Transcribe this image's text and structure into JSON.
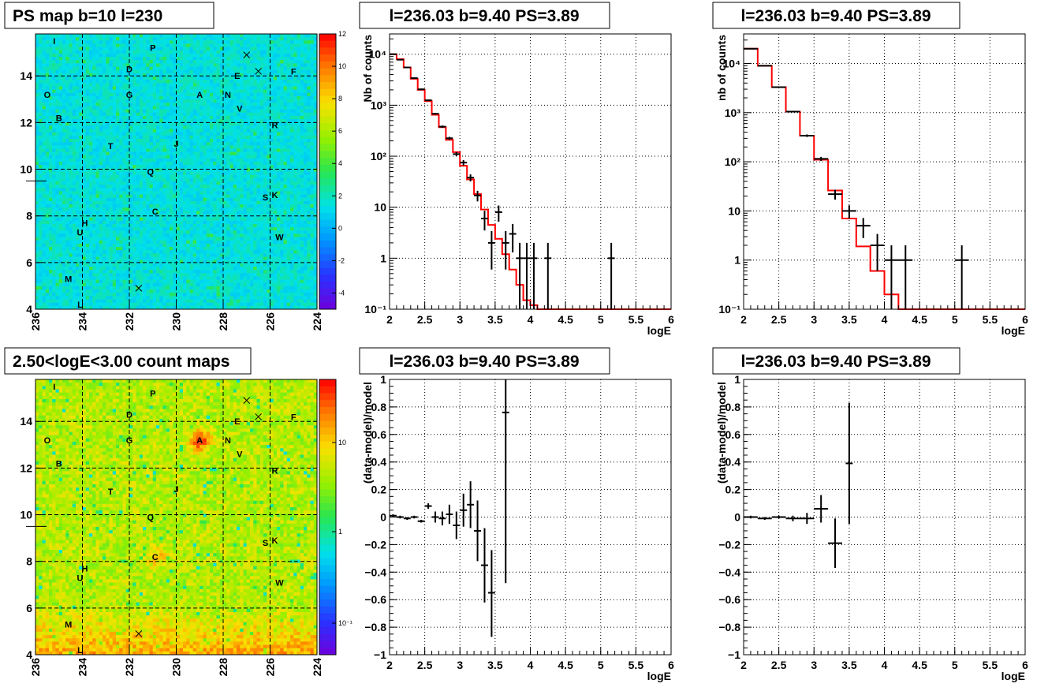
{
  "chart_data": [
    {
      "id": "ps-map",
      "type": "heatmap",
      "title": "PS map b=10 l=230",
      "x_ticks": [
        "236",
        "234",
        "232",
        "230",
        "228",
        "226",
        "224"
      ],
      "y_ticks": [
        "4",
        "6",
        "8",
        "10",
        "12",
        "14"
      ],
      "xlim": [
        236,
        224
      ],
      "ylim": [
        4,
        15.8
      ],
      "palette_ticks": [
        "12",
        "10",
        "8",
        "6",
        "4",
        "2",
        "0",
        "-2",
        "-4"
      ],
      "palette_range": [
        -5,
        12
      ],
      "palette_scale": "linear",
      "background_level": 0.5
    },
    {
      "id": "count-map",
      "type": "heatmap",
      "title": "2.50<logE<3.00 count maps",
      "x_ticks": [
        "236",
        "234",
        "232",
        "230",
        "228",
        "226",
        "224"
      ],
      "y_ticks": [
        "4",
        "6",
        "8",
        "10",
        "12",
        "14"
      ],
      "xlim": [
        236,
        224
      ],
      "ylim": [
        4,
        15.8
      ],
      "palette_ticks": [
        "10",
        "1",
        "10⁻¹"
      ],
      "palette_scale": "log",
      "hotspots": [
        {
          "label": "A",
          "l": 229.0,
          "b": 13.2,
          "strength": 1.0
        },
        {
          "label": "C",
          "l": 230.8,
          "b": 8.2,
          "strength": 0.45
        }
      ]
    },
    {
      "id": "spectrum-1",
      "type": "line",
      "title": "l=236.03 b=9.40 PS=3.89",
      "xlabel": "logE",
      "ylabel": "Nb of counts",
      "xlim": [
        2,
        6
      ],
      "ylim": [
        0.1,
        25000
      ],
      "yscale": "log",
      "x_ticks": [
        "2",
        "2.5",
        "3",
        "3.5",
        "4",
        "4.5",
        "5",
        "5.5",
        "6"
      ],
      "y_ticks": [
        {
          "v": 0.1,
          "t": "10⁻¹"
        },
        {
          "v": 1,
          "t": "1"
        },
        {
          "v": 10,
          "t": "10"
        },
        {
          "v": 100,
          "t": "10²"
        },
        {
          "v": 1000,
          "t": "10³"
        },
        {
          "v": 10000,
          "t": "10⁴"
        }
      ],
      "model": {
        "edges": [
          2.0,
          2.1,
          2.2,
          2.3,
          2.4,
          2.5,
          2.6,
          2.7,
          2.8,
          2.9,
          3.0,
          3.1,
          3.2,
          3.3,
          3.4,
          3.5,
          3.6,
          3.7,
          3.8,
          3.9,
          4.0,
          4.1,
          6.0
        ],
        "values": [
          10000,
          8000,
          5500,
          3300,
          2000,
          1200,
          650,
          370,
          210,
          120,
          65,
          35,
          18,
          9,
          4.5,
          2.4,
          1.2,
          0.6,
          0.3,
          0.15,
          0.12,
          0.1
        ]
      },
      "data": [
        {
          "x": 2.05,
          "y": 10000,
          "lo": 9800,
          "hi": 10200,
          "hw": 0.05
        },
        {
          "x": 2.15,
          "y": 7800,
          "lo": 7600,
          "hi": 8000,
          "hw": 0.05
        },
        {
          "x": 2.25,
          "y": 5500,
          "lo": 5350,
          "hi": 5650,
          "hw": 0.05
        },
        {
          "x": 2.35,
          "y": 3400,
          "lo": 3300,
          "hi": 3500,
          "hw": 0.05
        },
        {
          "x": 2.45,
          "y": 2050,
          "lo": 1980,
          "hi": 2120,
          "hw": 0.05
        },
        {
          "x": 2.55,
          "y": 1250,
          "lo": 1200,
          "hi": 1300,
          "hw": 0.05
        },
        {
          "x": 2.65,
          "y": 680,
          "lo": 650,
          "hi": 710,
          "hw": 0.05
        },
        {
          "x": 2.75,
          "y": 380,
          "lo": 360,
          "hi": 400,
          "hw": 0.05
        },
        {
          "x": 2.85,
          "y": 225,
          "lo": 210,
          "hi": 240,
          "hw": 0.05
        },
        {
          "x": 2.95,
          "y": 110,
          "lo": 100,
          "hi": 120,
          "hw": 0.05
        },
        {
          "x": 3.05,
          "y": 75,
          "lo": 66,
          "hi": 84,
          "hw": 0.05
        },
        {
          "x": 3.15,
          "y": 38,
          "lo": 32,
          "hi": 44,
          "hw": 0.05
        },
        {
          "x": 3.25,
          "y": 17,
          "lo": 13,
          "hi": 21,
          "hw": 0.05
        },
        {
          "x": 3.35,
          "y": 6,
          "lo": 3.5,
          "hi": 8.5,
          "hw": 0.05
        },
        {
          "x": 3.45,
          "y": 2,
          "lo": 0.6,
          "hi": 3.4,
          "hw": 0.05
        },
        {
          "x": 3.55,
          "y": 8,
          "lo": 5.2,
          "hi": 10.8,
          "hw": 0.05
        },
        {
          "x": 3.65,
          "y": 2,
          "lo": 0.6,
          "hi": 3.4,
          "hw": 0.05
        },
        {
          "x": 3.75,
          "y": 3,
          "lo": 1.3,
          "hi": 4.7,
          "hw": 0.05
        },
        {
          "x": 3.85,
          "y": 1,
          "lo": 0.1,
          "hi": 2.0,
          "hw": 0.05
        },
        {
          "x": 3.95,
          "y": 1,
          "lo": 0.1,
          "hi": 2.0,
          "hw": 0.05
        },
        {
          "x": 4.05,
          "y": 1,
          "lo": 0.1,
          "hi": 2.0,
          "hw": 0.05
        },
        {
          "x": 4.25,
          "y": 1,
          "lo": 0.1,
          "hi": 2.0,
          "hw": 0.05
        },
        {
          "x": 5.15,
          "y": 1,
          "lo": 0.1,
          "hi": 2.0,
          "hw": 0.05
        }
      ]
    },
    {
      "id": "spectrum-2",
      "type": "line",
      "title": "l=236.03 b=9.40 PS=3.89",
      "xlabel": "logE",
      "ylabel": "nb of counts",
      "xlim": [
        2,
        6
      ],
      "ylim": [
        0.1,
        40000
      ],
      "yscale": "log",
      "x_ticks": [
        "2",
        "2.5",
        "3",
        "3.5",
        "4",
        "4.5",
        "5",
        "5.5",
        "6"
      ],
      "y_ticks": [
        {
          "v": 0.1,
          "t": "10⁻¹"
        },
        {
          "v": 1,
          "t": "1"
        },
        {
          "v": 10,
          "t": "10"
        },
        {
          "v": 100,
          "t": "10²"
        },
        {
          "v": 1000,
          "t": "10³"
        },
        {
          "v": 10000,
          "t": "10⁴"
        }
      ],
      "model": {
        "edges": [
          2.0,
          2.2,
          2.4,
          2.6,
          2.8,
          3.0,
          3.2,
          3.4,
          3.6,
          3.8,
          4.0,
          4.2,
          6.0
        ],
        "values": [
          20000,
          9000,
          3300,
          1050,
          340,
          110,
          26,
          7,
          1.9,
          0.6,
          0.2,
          0.1
        ]
      },
      "data": [
        {
          "x": 2.1,
          "y": 20000,
          "lo": 19700,
          "hi": 20300,
          "hw": 0.1
        },
        {
          "x": 2.3,
          "y": 9000,
          "lo": 8800,
          "hi": 9200,
          "hw": 0.1
        },
        {
          "x": 2.5,
          "y": 3300,
          "lo": 3200,
          "hi": 3400,
          "hw": 0.1
        },
        {
          "x": 2.7,
          "y": 1050,
          "lo": 1010,
          "hi": 1090,
          "hw": 0.1
        },
        {
          "x": 2.9,
          "y": 340,
          "lo": 320,
          "hi": 360,
          "hw": 0.1
        },
        {
          "x": 3.1,
          "y": 115,
          "lo": 104,
          "hi": 126,
          "hw": 0.1
        },
        {
          "x": 3.3,
          "y": 22,
          "lo": 17,
          "hi": 27,
          "hw": 0.1
        },
        {
          "x": 3.5,
          "y": 10,
          "lo": 7,
          "hi": 13,
          "hw": 0.1
        },
        {
          "x": 3.7,
          "y": 5,
          "lo": 2.8,
          "hi": 7.2,
          "hw": 0.1
        },
        {
          "x": 3.9,
          "y": 2,
          "lo": 0.6,
          "hi": 3.4,
          "hw": 0.1
        },
        {
          "x": 4.1,
          "y": 1,
          "lo": 0.1,
          "hi": 2.0,
          "hw": 0.1
        },
        {
          "x": 4.3,
          "y": 1,
          "lo": 0.1,
          "hi": 2.0,
          "hw": 0.1
        },
        {
          "x": 5.1,
          "y": 1,
          "lo": 0.1,
          "hi": 2.0,
          "hw": 0.1
        }
      ]
    },
    {
      "id": "residual-1",
      "type": "scatter",
      "title": "l=236.03 b=9.40 PS=3.89",
      "xlabel": "logE",
      "ylabel": "(data-model)/model",
      "xlim": [
        2,
        6
      ],
      "ylim": [
        -1,
        1
      ],
      "yscale": "linear",
      "x_ticks": [
        "2",
        "2.5",
        "3",
        "3.5",
        "4",
        "4.5",
        "5",
        "5.5",
        "6"
      ],
      "y_ticks": [
        {
          "v": 1,
          "t": "1"
        },
        {
          "v": 0.8,
          "t": "0.8"
        },
        {
          "v": 0.6,
          "t": "0.6"
        },
        {
          "v": 0.4,
          "t": "0.4"
        },
        {
          "v": 0.2,
          "t": "0.2"
        },
        {
          "v": 0,
          "t": "0"
        },
        {
          "v": -0.2,
          "t": "−0.2"
        },
        {
          "v": -0.4,
          "t": "−0.4"
        },
        {
          "v": -0.6,
          "t": "−0.6"
        },
        {
          "v": -0.8,
          "t": "−0.8"
        },
        {
          "v": -1,
          "t": "−1"
        }
      ],
      "data": [
        {
          "x": 2.05,
          "y": 0.01,
          "lo": 0.0,
          "hi": 0.02,
          "hw": 0.05
        },
        {
          "x": 2.15,
          "y": 0.0,
          "lo": -0.01,
          "hi": 0.01,
          "hw": 0.05
        },
        {
          "x": 2.25,
          "y": -0.01,
          "lo": -0.02,
          "hi": 0.0,
          "hw": 0.05
        },
        {
          "x": 2.35,
          "y": 0.0,
          "lo": -0.01,
          "hi": 0.01,
          "hw": 0.05
        },
        {
          "x": 2.45,
          "y": -0.03,
          "lo": -0.04,
          "hi": -0.02,
          "hw": 0.05
        },
        {
          "x": 2.55,
          "y": 0.08,
          "lo": 0.06,
          "hi": 0.1,
          "hw": 0.05
        },
        {
          "x": 2.65,
          "y": 0.0,
          "lo": -0.04,
          "hi": 0.04,
          "hw": 0.05
        },
        {
          "x": 2.75,
          "y": -0.01,
          "lo": -0.06,
          "hi": 0.04,
          "hw": 0.05
        },
        {
          "x": 2.85,
          "y": 0.02,
          "lo": -0.05,
          "hi": 0.09,
          "hw": 0.05
        },
        {
          "x": 2.95,
          "y": -0.06,
          "lo": -0.16,
          "hi": 0.04,
          "hw": 0.05
        },
        {
          "x": 3.05,
          "y": 0.05,
          "lo": -0.07,
          "hi": 0.17,
          "hw": 0.05
        },
        {
          "x": 3.15,
          "y": 0.09,
          "lo": -0.08,
          "hi": 0.26,
          "hw": 0.05
        },
        {
          "x": 3.25,
          "y": -0.1,
          "lo": -0.32,
          "hi": 0.12,
          "hw": 0.05
        },
        {
          "x": 3.35,
          "y": -0.35,
          "lo": -0.62,
          "hi": -0.08,
          "hw": 0.05
        },
        {
          "x": 3.45,
          "y": -0.55,
          "lo": -0.87,
          "hi": -0.24,
          "hw": 0.05
        },
        {
          "x": 3.65,
          "y": 0.76,
          "lo": -0.48,
          "hi": 1.0,
          "hw": 0.05
        }
      ]
    },
    {
      "id": "residual-2",
      "type": "scatter",
      "title": "l=236.03 b=9.40 PS=3.89",
      "xlabel": "logE",
      "ylabel": "(data-model)/model",
      "xlim": [
        2,
        6
      ],
      "ylim": [
        -1,
        1
      ],
      "yscale": "linear",
      "x_ticks": [
        "2",
        "2.5",
        "3",
        "3.5",
        "4",
        "4.5",
        "5",
        "5.5",
        "6"
      ],
      "y_ticks": [
        {
          "v": 1,
          "t": "1"
        },
        {
          "v": 0.8,
          "t": "0.8"
        },
        {
          "v": 0.6,
          "t": "0.6"
        },
        {
          "v": 0.4,
          "t": "0.4"
        },
        {
          "v": 0.2,
          "t": "0.2"
        },
        {
          "v": 0,
          "t": "0"
        },
        {
          "v": -0.2,
          "t": "−0.2"
        },
        {
          "v": -0.4,
          "t": "−0.4"
        },
        {
          "v": -0.6,
          "t": "−0.6"
        },
        {
          "v": -0.8,
          "t": "−0.8"
        },
        {
          "v": -1,
          "t": "−1"
        }
      ],
      "data": [
        {
          "x": 2.1,
          "y": 0.0,
          "lo": -0.01,
          "hi": 0.01,
          "hw": 0.1
        },
        {
          "x": 2.3,
          "y": -0.01,
          "lo": -0.02,
          "hi": 0.0,
          "hw": 0.1
        },
        {
          "x": 2.5,
          "y": 0.0,
          "lo": -0.01,
          "hi": 0.01,
          "hw": 0.1
        },
        {
          "x": 2.7,
          "y": -0.01,
          "lo": -0.03,
          "hi": 0.01,
          "hw": 0.1
        },
        {
          "x": 2.9,
          "y": -0.01,
          "lo": -0.05,
          "hi": 0.03,
          "hw": 0.1
        },
        {
          "x": 3.1,
          "y": 0.06,
          "lo": -0.04,
          "hi": 0.16,
          "hw": 0.1
        },
        {
          "x": 3.3,
          "y": -0.19,
          "lo": -0.37,
          "hi": -0.01,
          "hw": 0.1
        },
        {
          "x": 3.5,
          "y": 0.39,
          "lo": -0.05,
          "hi": 0.83,
          "hw": 0.05
        }
      ]
    }
  ],
  "sources": [
    {
      "label": "I",
      "l": 235.2,
      "b": 15.5
    },
    {
      "label": "P",
      "l": 231.0,
      "b": 15.2
    },
    {
      "label": "D",
      "l": 232.0,
      "b": 14.3
    },
    {
      "label": "E",
      "l": 227.4,
      "b": 14.0
    },
    {
      "label": "F",
      "l": 225.0,
      "b": 14.2
    },
    {
      "label": "O",
      "l": 235.5,
      "b": 13.2
    },
    {
      "label": "G",
      "l": 232.0,
      "b": 13.2
    },
    {
      "label": "A",
      "l": 229.0,
      "b": 13.2
    },
    {
      "label": "N",
      "l": 227.8,
      "b": 13.2
    },
    {
      "label": "V",
      "l": 227.3,
      "b": 12.6
    },
    {
      "label": "B",
      "l": 235.0,
      "b": 12.2
    },
    {
      "label": "R",
      "l": 225.8,
      "b": 11.9
    },
    {
      "label": "T",
      "l": 232.8,
      "b": 11.0
    },
    {
      "label": "J",
      "l": 230.0,
      "b": 11.1
    },
    {
      "label": "Q",
      "l": 231.1,
      "b": 9.9
    },
    {
      "label": "S",
      "l": 226.2,
      "b": 8.8
    },
    {
      "label": "K",
      "l": 225.8,
      "b": 8.9
    },
    {
      "label": "C",
      "l": 230.9,
      "b": 8.2
    },
    {
      "label": "H",
      "l": 233.9,
      "b": 7.7
    },
    {
      "label": "U",
      "l": 234.1,
      "b": 7.3
    },
    {
      "label": "W",
      "l": 225.6,
      "b": 7.1
    },
    {
      "label": "M",
      "l": 234.6,
      "b": 5.3
    },
    {
      "label": "L",
      "l": 234.1,
      "b": 4.2
    }
  ],
  "crosses": [
    {
      "l": 227.0,
      "b": 14.9
    },
    {
      "l": 226.5,
      "b": 14.2
    },
    {
      "l": 231.6,
      "b": 4.9
    }
  ],
  "colors": {
    "model_line": "#ff0000",
    "data_points": "#000000",
    "frame": "#000000"
  }
}
